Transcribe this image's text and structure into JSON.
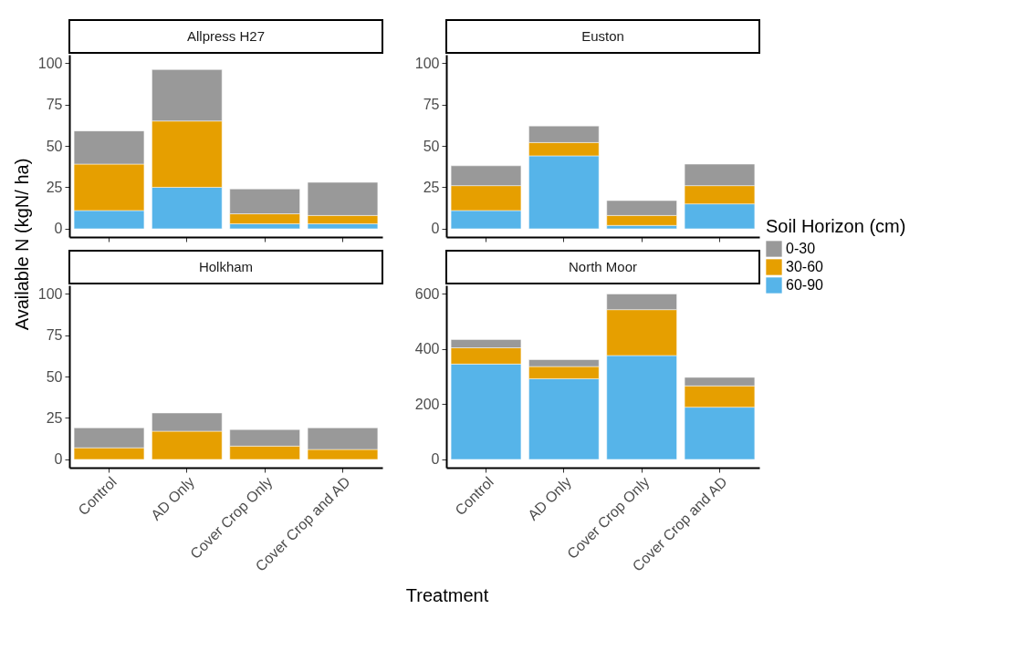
{
  "chart_data": [
    {
      "type": "bar",
      "title": "Allpress H27",
      "ylabel": "Available N (kgN/ ha)",
      "legend_title": "Soil Horizon (cm)",
      "legend": "right",
      "stacked": true,
      "tick_labels": "y",
      "categories": [
        "Control",
        "AD Only",
        "Cover Crop Only",
        "Cover Crop and AD"
      ],
      "ylim": [
        -5,
        105
      ],
      "yticks": [
        0,
        25,
        50,
        75,
        100
      ],
      "series": [
        {
          "name": "60-90",
          "color": "#56b4e9",
          "values": [
            11,
            25,
            3,
            3
          ]
        },
        {
          "name": "30-60",
          "color": "#e69f00",
          "values": [
            28,
            40,
            6,
            5
          ]
        },
        {
          "name": "0-30",
          "color": "#999999",
          "values": [
            20,
            31,
            15,
            20
          ]
        }
      ]
    },
    {
      "type": "bar",
      "title": "Euston",
      "legend": "right",
      "stacked": true,
      "tick_labels": "y",
      "categories": [
        "Control",
        "AD Only",
        "Cover Crop Only",
        "Cover Crop and AD"
      ],
      "ylim": [
        -5,
        105
      ],
      "yticks": [
        0,
        25,
        50,
        75,
        100
      ],
      "series": [
        {
          "name": "60-90",
          "color": "#56b4e9",
          "values": [
            11,
            44,
            2,
            15
          ]
        },
        {
          "name": "30-60",
          "color": "#e69f00",
          "values": [
            15,
            8,
            6,
            11
          ]
        },
        {
          "name": "0-30",
          "color": "#999999",
          "values": [
            12,
            10,
            9,
            13
          ]
        }
      ]
    },
    {
      "type": "bar",
      "title": "Holkham",
      "xlabel": "Treatment",
      "legend": "right",
      "stacked": true,
      "categories": [
        "Control",
        "AD Only",
        "Cover Crop Only",
        "Cover Crop and AD"
      ],
      "ylim": [
        -5,
        105
      ],
      "yticks": [
        0,
        25,
        50,
        75,
        100
      ],
      "series": [
        {
          "name": "60-90",
          "color": "#56b4e9",
          "values": [
            0,
            0,
            0,
            0
          ]
        },
        {
          "name": "30-60",
          "color": "#e69f00",
          "values": [
            7,
            17,
            8,
            6
          ]
        },
        {
          "name": "0-30",
          "color": "#999999",
          "values": [
            12,
            11,
            10,
            13
          ]
        }
      ]
    },
    {
      "type": "bar",
      "title": "North Moor",
      "legend": "right",
      "stacked": true,
      "categories": [
        "Control",
        "AD Only",
        "Cover Crop Only",
        "Cover Crop and AD"
      ],
      "ylim": [
        -30,
        630
      ],
      "yticks": [
        0,
        200,
        400,
        600
      ],
      "series": [
        {
          "name": "60-90",
          "color": "#56b4e9",
          "values": [
            345,
            292,
            376,
            189
          ]
        },
        {
          "name": "30-60",
          "color": "#e69f00",
          "values": [
            59,
            44,
            166,
            77
          ]
        },
        {
          "name": "0-30",
          "color": "#999999",
          "values": [
            30,
            25,
            57,
            31
          ]
        }
      ]
    }
  ]
}
